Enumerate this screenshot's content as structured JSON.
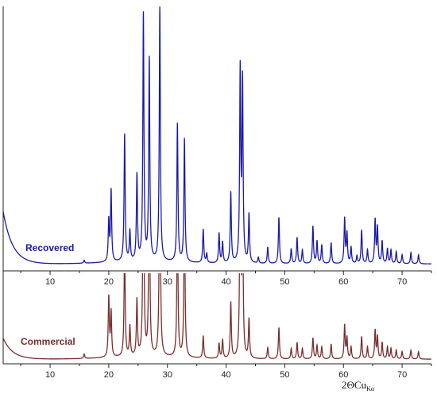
{
  "chart_data": {
    "type": "line",
    "xlabel_main": "2ΘCu",
    "xlabel_sub": "Kα",
    "xlim": [
      2,
      75
    ],
    "xticks": [
      10,
      20,
      30,
      40,
      50,
      60,
      70
    ],
    "grid": false,
    "series": [
      {
        "name": "Recovered",
        "color": "#1a1aa8",
        "baseline": 5,
        "amorphous_hump": 70,
        "peaks": [
          [
            15.8,
            4
          ],
          [
            20.0,
            55
          ],
          [
            20.4,
            95
          ],
          [
            22.7,
            170
          ],
          [
            23.6,
            40
          ],
          [
            24.8,
            115
          ],
          [
            25.9,
            330
          ],
          [
            26.9,
            270
          ],
          [
            28.7,
            340
          ],
          [
            31.7,
            185
          ],
          [
            32.9,
            165
          ],
          [
            36.1,
            45
          ],
          [
            36.7,
            12
          ],
          [
            38.8,
            40
          ],
          [
            39.4,
            28
          ],
          [
            40.8,
            95
          ],
          [
            42.4,
            255
          ],
          [
            42.8,
            240
          ],
          [
            43.9,
            65
          ],
          [
            45.5,
            8
          ],
          [
            47.1,
            22
          ],
          [
            49.0,
            62
          ],
          [
            51.1,
            20
          ],
          [
            52.1,
            35
          ],
          [
            53.0,
            18
          ],
          [
            54.8,
            50
          ],
          [
            55.5,
            30
          ],
          [
            56.3,
            25
          ],
          [
            57.9,
            28
          ],
          [
            60.2,
            60
          ],
          [
            60.6,
            40
          ],
          [
            61.3,
            22
          ],
          [
            62.3,
            10
          ],
          [
            63.1,
            45
          ],
          [
            64.1,
            18
          ],
          [
            65.4,
            58
          ],
          [
            65.8,
            48
          ],
          [
            66.6,
            30
          ],
          [
            67.5,
            20
          ],
          [
            68.1,
            18
          ],
          [
            69.0,
            16
          ],
          [
            70.0,
            12
          ],
          [
            71.5,
            15
          ],
          [
            72.8,
            12
          ]
        ]
      },
      {
        "name": "Commercial",
        "color": "#7a2e2e",
        "baseline": 3,
        "amorphous_hump": 28,
        "peaks": [
          [
            15.8,
            6
          ],
          [
            20.0,
            80
          ],
          [
            20.4,
            60
          ],
          [
            22.7,
            150
          ],
          [
            23.6,
            40
          ],
          [
            24.8,
            75
          ],
          [
            25.9,
            310
          ],
          [
            26.9,
            270
          ],
          [
            28.7,
            330
          ],
          [
            31.7,
            200
          ],
          [
            32.9,
            210
          ],
          [
            36.1,
            30
          ],
          [
            38.8,
            20
          ],
          [
            39.4,
            25
          ],
          [
            40.8,
            75
          ],
          [
            42.4,
            260
          ],
          [
            42.8,
            220
          ],
          [
            43.9,
            52
          ],
          [
            47.1,
            15
          ],
          [
            49.0,
            42
          ],
          [
            51.1,
            14
          ],
          [
            52.1,
            22
          ],
          [
            53.0,
            14
          ],
          [
            54.8,
            28
          ],
          [
            55.5,
            18
          ],
          [
            56.3,
            16
          ],
          [
            57.9,
            20
          ],
          [
            60.2,
            45
          ],
          [
            60.6,
            28
          ],
          [
            61.3,
            16
          ],
          [
            63.1,
            30
          ],
          [
            64.1,
            16
          ],
          [
            65.4,
            38
          ],
          [
            65.8,
            30
          ],
          [
            66.6,
            22
          ],
          [
            67.5,
            16
          ],
          [
            68.1,
            14
          ],
          [
            69.0,
            12
          ],
          [
            70.0,
            10
          ],
          [
            71.5,
            12
          ],
          [
            72.8,
            10
          ]
        ]
      }
    ]
  }
}
